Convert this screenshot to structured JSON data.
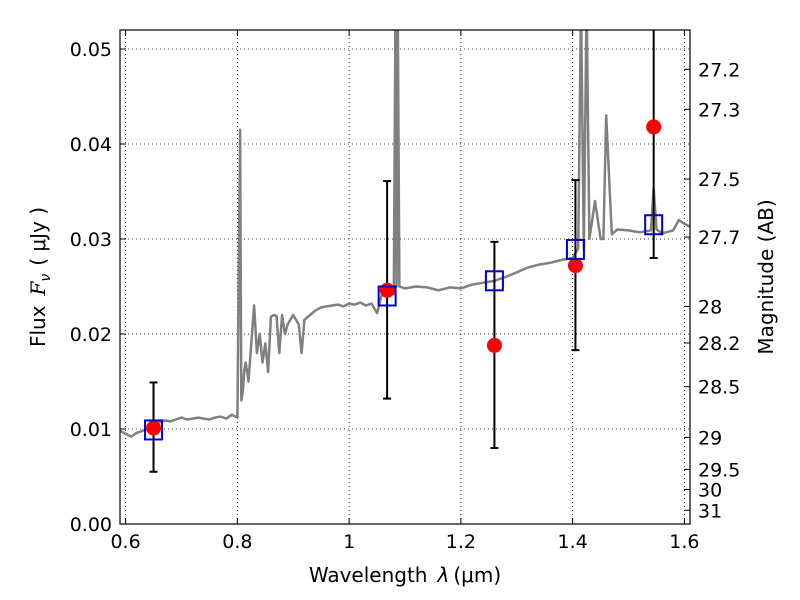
{
  "chart_data": {
    "type": "line",
    "xlabel": "Wavelength",
    "xlabel_symbol": "λ",
    "xlabel_unit": "(μm)",
    "ylabel": "Flux",
    "ylabel_symbol": "F",
    "ylabel_subscript": "ν",
    "ylabel_unit": "( μJy )",
    "y2label": "Magnitude (AB)",
    "xlim": [
      0.59,
      1.61
    ],
    "ylim": [
      0.0,
      0.052
    ],
    "grid": true,
    "x_ticks": [
      0.6,
      0.8,
      1.0,
      1.2,
      1.4,
      1.6
    ],
    "x_tick_labels": [
      "0.6",
      "0.8",
      "1",
      "1.2",
      "1.4",
      "1.6"
    ],
    "y_ticks": [
      0.0,
      0.01,
      0.02,
      0.03,
      0.04,
      0.05
    ],
    "y_tick_labels": [
      "0.00",
      "0.01",
      "0.02",
      "0.03",
      "0.04",
      "0.05"
    ],
    "y2_ticks": [
      27.2,
      27.3,
      27.5,
      27.7,
      28,
      28.2,
      28.5,
      29,
      29.5,
      30,
      31
    ],
    "y2_tick_labels": [
      "27.2",
      "27.3",
      "27.5",
      "27.7",
      "28",
      "28.2",
      "28.5",
      "29",
      "29.5",
      "30",
      "31"
    ],
    "colors": {
      "model": "#808080",
      "observed": "#ff0000",
      "synthetic": "#0000cc",
      "errorbar": "#000000"
    },
    "series": [
      {
        "type": "line",
        "x": [
          0.59,
          0.6,
          0.61,
          0.62,
          0.63,
          0.64,
          0.65,
          0.66,
          0.67,
          0.68,
          0.69,
          0.7,
          0.71,
          0.72,
          0.73,
          0.74,
          0.75,
          0.76,
          0.77,
          0.78,
          0.79,
          0.8,
          0.805,
          0.807,
          0.81,
          0.812,
          0.815,
          0.82,
          0.83,
          0.835,
          0.84,
          0.845,
          0.85,
          0.855,
          0.86,
          0.865,
          0.87,
          0.875,
          0.88,
          0.885,
          0.89,
          0.9,
          0.91,
          0.915,
          0.92,
          0.93,
          0.94,
          0.95,
          0.96,
          0.97,
          0.98,
          0.99,
          1.0,
          1.01,
          1.02,
          1.03,
          1.04,
          1.05,
          1.06,
          1.07,
          1.08,
          1.083,
          1.085,
          1.087,
          1.09,
          1.1,
          1.12,
          1.14,
          1.16,
          1.18,
          1.2,
          1.22,
          1.24,
          1.26,
          1.28,
          1.3,
          1.32,
          1.34,
          1.36,
          1.38,
          1.4,
          1.41,
          1.415,
          1.42,
          1.425,
          1.43,
          1.44,
          1.45,
          1.455,
          1.46,
          1.47,
          1.48,
          1.5,
          1.52,
          1.54,
          1.545,
          1.55,
          1.56,
          1.58,
          1.59,
          1.6,
          1.61
        ],
        "y": [
          0.0098,
          0.0095,
          0.0092,
          0.0096,
          0.0098,
          0.0101,
          0.0104,
          0.0107,
          0.0109,
          0.0108,
          0.011,
          0.0112,
          0.011,
          0.0111,
          0.0112,
          0.0111,
          0.011,
          0.0112,
          0.0113,
          0.0111,
          0.0115,
          0.0112,
          0.0415,
          0.013,
          0.014,
          0.016,
          0.017,
          0.015,
          0.023,
          0.018,
          0.02,
          0.017,
          0.019,
          0.016,
          0.0218,
          0.022,
          0.0219,
          0.018,
          0.022,
          0.02,
          0.021,
          0.022,
          0.021,
          0.018,
          0.0215,
          0.022,
          0.0225,
          0.0228,
          0.0229,
          0.023,
          0.0231,
          0.0229,
          0.0232,
          0.0231,
          0.0233,
          0.023,
          0.0232,
          0.0222,
          0.0245,
          0.025,
          0.0242,
          0.055,
          0.025,
          0.055,
          0.025,
          0.0248,
          0.025,
          0.0249,
          0.0246,
          0.0249,
          0.0248,
          0.0252,
          0.0254,
          0.0256,
          0.026,
          0.0265,
          0.027,
          0.0273,
          0.0275,
          0.0278,
          0.028,
          0.029,
          0.055,
          0.029,
          0.055,
          0.03,
          0.034,
          0.03,
          0.03,
          0.043,
          0.0305,
          0.031,
          0.0309,
          0.0307,
          0.0309,
          0.0353,
          0.031,
          0.0306,
          0.0309,
          0.032,
          0.0316,
          0.0313
        ]
      },
      {
        "type": "observed",
        "x": [
          0.65,
          1.068,
          1.26,
          1.405,
          1.545
        ],
        "y": [
          0.0101,
          0.0246,
          0.0188,
          0.0272,
          0.0418
        ],
        "yerr_low": [
          0.0055,
          0.0132,
          0.008,
          0.0183,
          0.028
        ],
        "yerr_high": [
          0.0149,
          0.0361,
          0.0297,
          0.0362,
          0.0525
        ]
      },
      {
        "type": "synthetic",
        "x": [
          0.65,
          1.068,
          1.26,
          1.405,
          1.545
        ],
        "y": [
          0.0099,
          0.024,
          0.0256,
          0.0289,
          0.0315
        ]
      }
    ]
  }
}
